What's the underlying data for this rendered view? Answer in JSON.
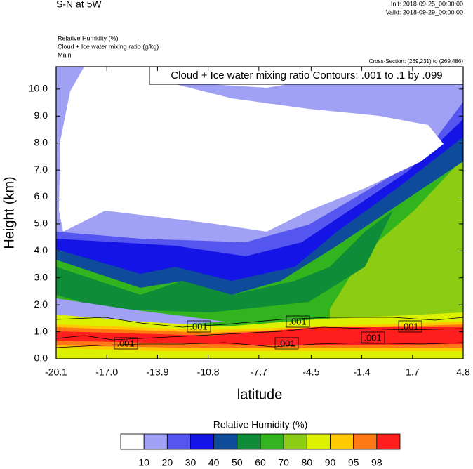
{
  "chart_data": {
    "type": "contour",
    "title": "S-N at 5W",
    "init": "Init: 2018-09-25_00:00:00",
    "valid": "Valid: 2018-09-29_00:00:00",
    "field_labels": [
      "Relative Humidity   (%)",
      "Cloud + Ice water mixing ratio   (g/kg)",
      "Main"
    ],
    "cross_section": "Cross-Section: (269,231) to (269,486)",
    "contour_info": "Cloud + Ice water mixing ratio Contours: .001 to .1 by .099",
    "contour_labels": [
      ".001",
      ".001",
      ".001",
      ".001",
      ".001",
      ".001"
    ],
    "xlabel": "latitude",
    "ylabel": "Height (km)",
    "xlim": [
      -20.1,
      4.8
    ],
    "xticks": [
      -20.1,
      {
        "value": -17,
        "label": "-17.0"
      },
      -13.9,
      -10.8,
      -7.7,
      -4.5,
      -1.4,
      1.7,
      4.8
    ],
    "ylim": [
      0,
      10.83
    ],
    "yticks": [
      {
        "value": 0,
        "label": "0.0"
      },
      {
        "value": 1,
        "label": "1.0"
      },
      {
        "value": 2,
        "label": "2.0"
      },
      {
        "value": 3,
        "label": "3.0"
      },
      {
        "value": 4,
        "label": "4.0"
      },
      {
        "value": 5,
        "label": "5.0"
      },
      {
        "value": 6,
        "label": "6.0"
      },
      {
        "value": 7,
        "label": "7.0"
      },
      {
        "value": 8,
        "label": "8.0"
      },
      {
        "value": 9,
        "label": "9.0"
      },
      {
        "value": 10,
        "label": "10.0"
      }
    ],
    "colorbar": {
      "title": "Relative Humidity  (%)",
      "levels": [
        10,
        20,
        30,
        40,
        50,
        60,
        70,
        80,
        90,
        95,
        98
      ],
      "colors": [
        "#ffffff",
        "#a0a0f5",
        "#5555f0",
        "#1414e6",
        "#0f4b9b",
        "#0f8c37",
        "#32b41e",
        "#8ccd14",
        "#dcf000",
        "#ffc800",
        "#ff7814",
        "#ff1e1e"
      ]
    }
  }
}
